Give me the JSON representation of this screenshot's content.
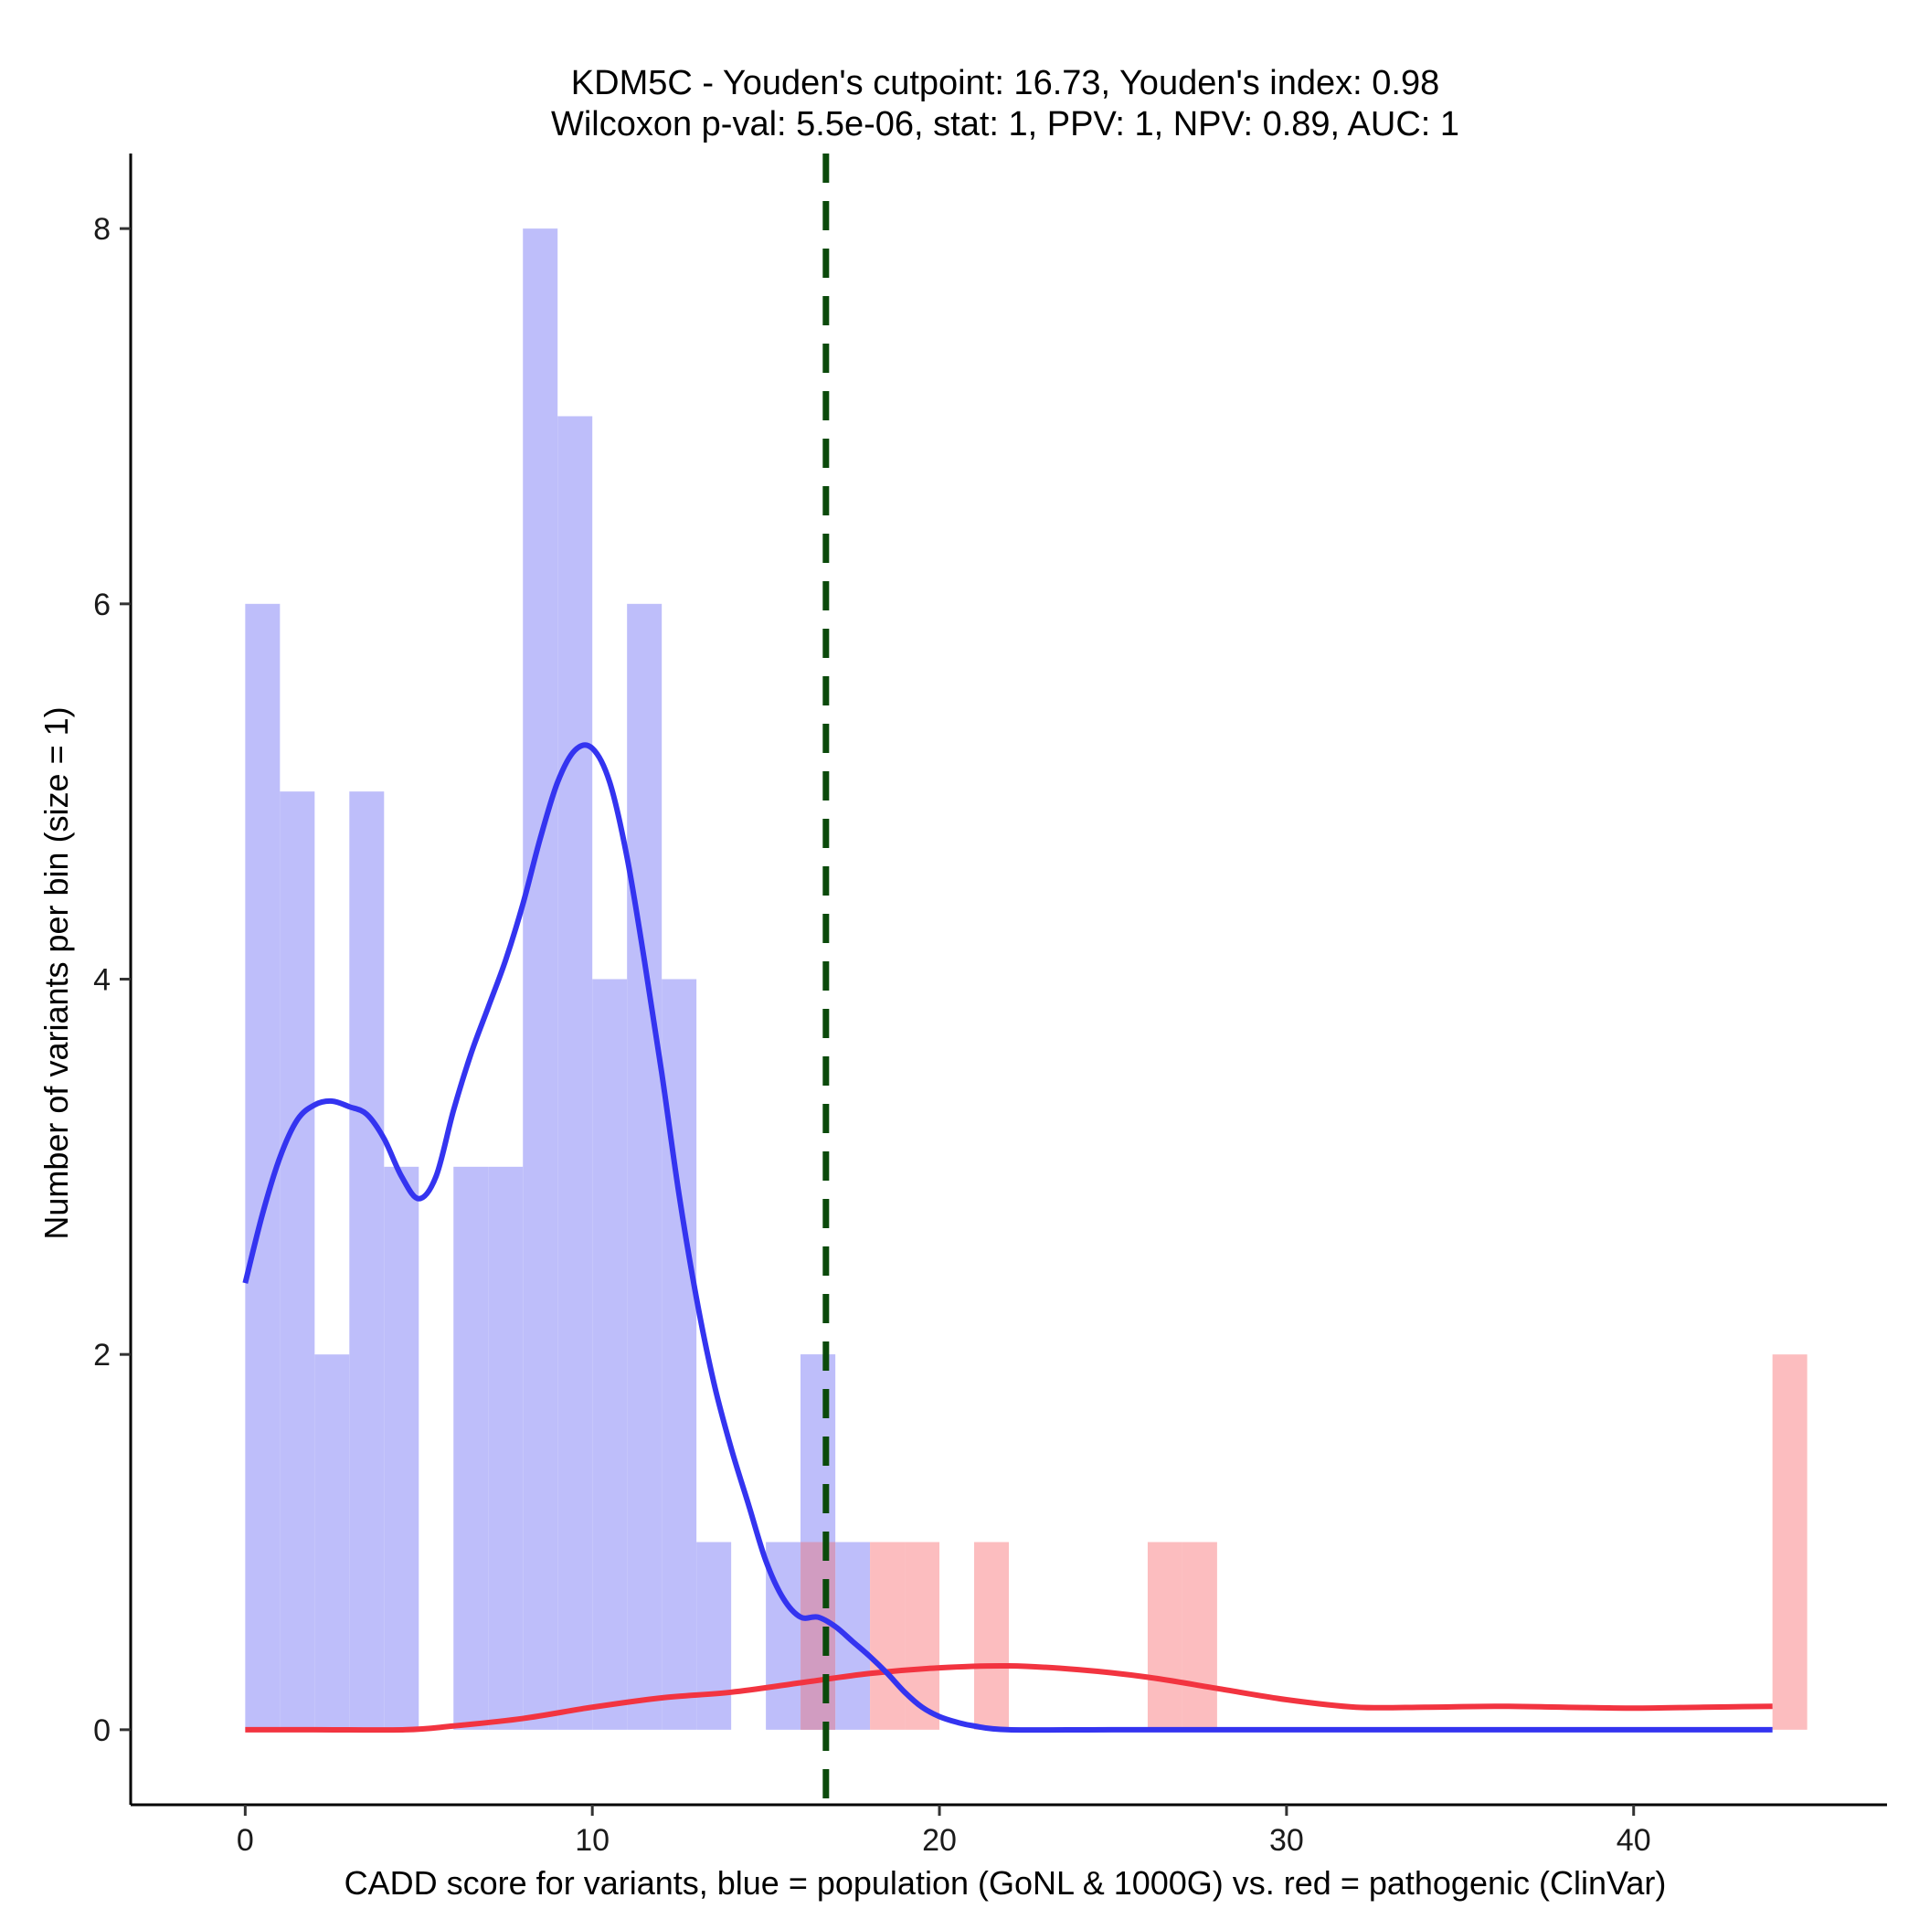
{
  "chart_data": {
    "type": "bar",
    "title_line1": "KDM5C - Youden's cutpoint: 16.73, Youden's index: 0.98",
    "title_line2": "Wilcoxon p-val: 5.5e-06, stat: 1, PPV: 1, NPV: 0.89, AUC: 1",
    "xlabel": "CADD score for variants, blue = population (GoNL & 1000G) vs. red = pathogenic (ClinVar)",
    "ylabel": "Number of variants per bin (size = 1)",
    "xlim": [
      -3.3,
      47.3
    ],
    "ylim": [
      -0.4,
      8.4
    ],
    "x_ticks": [
      0,
      10,
      20,
      30,
      40
    ],
    "y_ticks": [
      0,
      2,
      4,
      6,
      8
    ],
    "bin_size": 1,
    "cutpoint": 16.73,
    "colors": {
      "population_bar": "#bebefa",
      "pathogenic_bar": "#fcbdbf",
      "overlap_bar": "#d19cc1",
      "population_density": "#3434f0",
      "pathogenic_density": "#f23440",
      "cutpoint_line": "#0b4a0b"
    },
    "series": [
      {
        "name": "population (GoNL & 1000G)",
        "kind": "histogram",
        "bins": [
          {
            "start": 0,
            "count": 6
          },
          {
            "start": 1,
            "count": 5
          },
          {
            "start": 2,
            "count": 2
          },
          {
            "start": 3,
            "count": 5
          },
          {
            "start": 4,
            "count": 3
          },
          {
            "start": 6,
            "count": 3
          },
          {
            "start": 7,
            "count": 3
          },
          {
            "start": 8,
            "count": 8
          },
          {
            "start": 9,
            "count": 7
          },
          {
            "start": 10,
            "count": 4
          },
          {
            "start": 11,
            "count": 6
          },
          {
            "start": 12,
            "count": 4
          },
          {
            "start": 13,
            "count": 1
          },
          {
            "start": 15,
            "count": 1
          },
          {
            "start": 16,
            "count": 2
          },
          {
            "start": 17,
            "count": 1
          }
        ]
      },
      {
        "name": "pathogenic (ClinVar)",
        "kind": "histogram",
        "bins": [
          {
            "start": 16,
            "count": 1
          },
          {
            "start": 18,
            "count": 1
          },
          {
            "start": 19,
            "count": 1
          },
          {
            "start": 21,
            "count": 1
          },
          {
            "start": 26,
            "count": 1
          },
          {
            "start": 27,
            "count": 1
          },
          {
            "start": 44,
            "count": 2
          }
        ]
      },
      {
        "name": "population density",
        "kind": "line",
        "points": [
          [
            0,
            2.38
          ],
          [
            0.5,
            2.75
          ],
          [
            1,
            3.05
          ],
          [
            1.5,
            3.25
          ],
          [
            2,
            3.33
          ],
          [
            2.5,
            3.35
          ],
          [
            3,
            3.32
          ],
          [
            3.5,
            3.28
          ],
          [
            4,
            3.15
          ],
          [
            4.5,
            2.95
          ],
          [
            5,
            2.83
          ],
          [
            5.5,
            2.95
          ],
          [
            6,
            3.3
          ],
          [
            6.5,
            3.6
          ],
          [
            7,
            3.85
          ],
          [
            7.5,
            4.1
          ],
          [
            8,
            4.4
          ],
          [
            8.5,
            4.75
          ],
          [
            9,
            5.05
          ],
          [
            9.5,
            5.22
          ],
          [
            10,
            5.23
          ],
          [
            10.5,
            5.05
          ],
          [
            11,
            4.65
          ],
          [
            11.5,
            4.1
          ],
          [
            12,
            3.5
          ],
          [
            12.5,
            2.85
          ],
          [
            13,
            2.3
          ],
          [
            13.5,
            1.85
          ],
          [
            14,
            1.5
          ],
          [
            14.5,
            1.2
          ],
          [
            15,
            0.9
          ],
          [
            15.5,
            0.7
          ],
          [
            16,
            0.6
          ],
          [
            16.5,
            0.6
          ],
          [
            17,
            0.55
          ],
          [
            17.5,
            0.47
          ],
          [
            18,
            0.39
          ],
          [
            18.5,
            0.3
          ],
          [
            19,
            0.2
          ],
          [
            19.5,
            0.12
          ],
          [
            20,
            0.07
          ],
          [
            20.5,
            0.04
          ],
          [
            21,
            0.02
          ],
          [
            22,
            0
          ],
          [
            25,
            0
          ],
          [
            30,
            0
          ],
          [
            35,
            0
          ],
          [
            40,
            0
          ],
          [
            44,
            0
          ]
        ]
      },
      {
        "name": "pathogenic density",
        "kind": "line",
        "points": [
          [
            0,
            0
          ],
          [
            2,
            0
          ],
          [
            4.6,
            0
          ],
          [
            6,
            0.02
          ],
          [
            8,
            0.06
          ],
          [
            10,
            0.12
          ],
          [
            12,
            0.17
          ],
          [
            14,
            0.2
          ],
          [
            16,
            0.25
          ],
          [
            18,
            0.3
          ],
          [
            20,
            0.33
          ],
          [
            22,
            0.34
          ],
          [
            24,
            0.32
          ],
          [
            26,
            0.28
          ],
          [
            28,
            0.22
          ],
          [
            30,
            0.16
          ],
          [
            32,
            0.12
          ],
          [
            34,
            0.12
          ],
          [
            36,
            0.125
          ],
          [
            38,
            0.12
          ],
          [
            40,
            0.115
          ],
          [
            42,
            0.12
          ],
          [
            44,
            0.125
          ]
        ]
      }
    ]
  }
}
